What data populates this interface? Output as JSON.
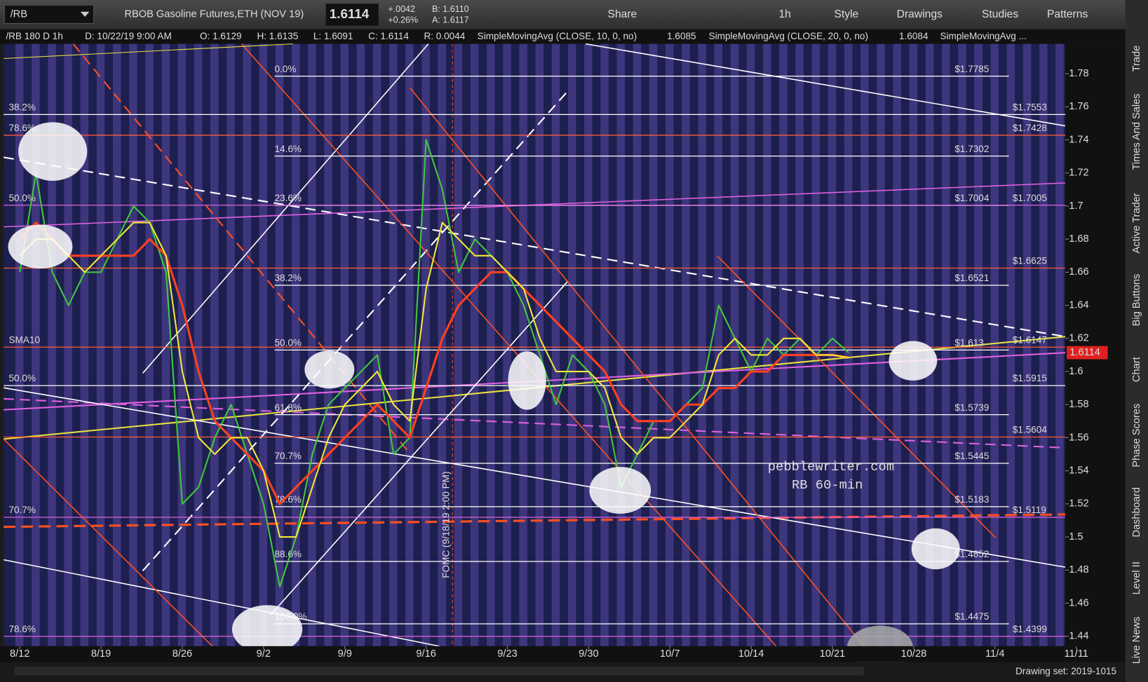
{
  "toolbar": {
    "symbol": "/RB",
    "description": "RBOB Gasoline Futures,ETH (NOV 19)",
    "last": "1.6114",
    "change": "+.0042",
    "change_pct": "+0.26%",
    "bid": "B: 1.6110",
    "ask": "A: 1.6117",
    "buttons": [
      "Share",
      "1h",
      "Style",
      "Drawings",
      "Studies",
      "Patterns"
    ]
  },
  "header": {
    "symbol": "/RB 180 D 1h",
    "date": "D: 10/22/19 9:00 AM",
    "open": "O: 1.6129",
    "high": "H: 1.6135",
    "low": "L: 1.6091",
    "close": "C: 1.6114",
    "range": "R: 0.0044",
    "study1_value": "1.6085",
    "study2_value": "1.6084",
    "study3": "SimpleMovingAvg ..."
  },
  "sidebar": [
    "Trade",
    "Times And Sales",
    "Active Trader",
    "Big Buttons",
    "Chart",
    "Phase Scores",
    "Dashboard",
    "Level II",
    "Live News"
  ],
  "footer": {
    "drawing_set": "Drawing set: 2019-1015"
  },
  "chart_data": {
    "type": "line",
    "categories": [
      "8/12",
      null,
      null,
      null,
      null,
      "8/19",
      null,
      null,
      null,
      null,
      "8/26",
      null,
      null,
      null,
      null,
      "9/2",
      null,
      null,
      null,
      null,
      "9/9",
      null,
      null,
      null,
      null,
      "9/16",
      null,
      null,
      null,
      null,
      "9/23",
      null,
      null,
      null,
      null,
      "9/30",
      null,
      null,
      null,
      null,
      "10/7",
      null,
      null,
      null,
      null,
      "10/14",
      null,
      null,
      null,
      null,
      "10/21",
      null,
      null,
      null,
      null,
      "10/28",
      null,
      null,
      null,
      null,
      "11/4",
      null,
      null,
      null,
      null,
      "11/11"
    ],
    "series": [
      {
        "color": "#3ec83e",
        "values": [
          1.66,
          1.72,
          1.66,
          1.64,
          1.66,
          1.66,
          1.68,
          1.7,
          1.69,
          1.66,
          1.52,
          1.53,
          1.56,
          1.58,
          1.55,
          1.52,
          1.47,
          1.5,
          1.55,
          1.58,
          1.59,
          1.6,
          1.61,
          1.55,
          1.56,
          1.74,
          1.71,
          1.66,
          1.68,
          1.67,
          1.66,
          1.64,
          1.61,
          1.58,
          1.61,
          1.6,
          1.58,
          1.53,
          1.55,
          1.57,
          1.57,
          1.58,
          1.59,
          1.64,
          1.62,
          1.6,
          1.62,
          1.61,
          1.62,
          1.61,
          1.62,
          1.6114,
          null,
          null,
          null,
          null,
          null,
          null,
          null,
          null,
          null,
          null,
          null,
          null,
          null,
          null
        ]
      },
      {
        "name": "SimpleMovingAvg (CLOSE, 10, 0, no)",
        "color": "#ff4020",
        "values": [
          1.68,
          1.69,
          1.68,
          1.67,
          1.67,
          1.67,
          1.67,
          1.67,
          1.68,
          1.67,
          1.64,
          1.6,
          1.57,
          1.56,
          1.55,
          1.54,
          1.52,
          1.53,
          1.54,
          1.55,
          1.56,
          1.57,
          1.58,
          1.57,
          1.56,
          1.59,
          1.62,
          1.64,
          1.65,
          1.66,
          1.66,
          1.65,
          1.64,
          1.63,
          1.62,
          1.61,
          1.6,
          1.58,
          1.57,
          1.57,
          1.57,
          1.58,
          1.58,
          1.59,
          1.59,
          1.6,
          1.6,
          1.61,
          1.61,
          1.61,
          1.61,
          1.6085,
          null,
          null,
          null,
          null,
          null,
          null,
          null,
          null,
          null,
          null,
          null,
          null,
          null,
          null
        ]
      },
      {
        "name": "SimpleMovingAvg (CLOSE, 20, 0, no)",
        "color": "#f0e838",
        "values": [
          1.67,
          1.68,
          1.68,
          1.67,
          1.66,
          1.67,
          1.68,
          1.69,
          1.69,
          1.67,
          1.6,
          1.56,
          1.55,
          1.56,
          1.56,
          1.54,
          1.5,
          1.5,
          1.53,
          1.56,
          1.58,
          1.59,
          1.6,
          1.58,
          1.57,
          1.65,
          1.69,
          1.68,
          1.67,
          1.67,
          1.66,
          1.65,
          1.62,
          1.6,
          1.6,
          1.6,
          1.59,
          1.56,
          1.55,
          1.56,
          1.56,
          1.57,
          1.58,
          1.61,
          1.62,
          1.61,
          1.61,
          1.62,
          1.62,
          1.61,
          1.61,
          1.6084,
          null,
          null,
          null,
          null,
          null,
          null,
          null,
          null,
          null,
          null,
          null,
          null,
          null,
          null
        ]
      }
    ],
    "ylim": [
      1.434,
      1.798
    ],
    "yticks": [
      1.44,
      1.46,
      1.48,
      1.5,
      1.52,
      1.54,
      1.56,
      1.58,
      1.6,
      1.62,
      1.64,
      1.66,
      1.68,
      1.7,
      1.72,
      1.74,
      1.76,
      1.78
    ],
    "current_price": 1.6114,
    "retracement_levels": [
      {
        "left": "0.0%",
        "right": "$1.7785",
        "value": 1.7785
      },
      {
        "left": "14.6%",
        "right": "$1.7302",
        "value": 1.7302
      },
      {
        "left": "23.6%",
        "right": "$1.7004",
        "value": 1.7004
      },
      {
        "left": "38.2%",
        "right": "$1.6521",
        "value": 1.6521
      },
      {
        "left": "50.0%",
        "right": "$1.613",
        "value": 1.613
      },
      {
        "left": "61.8%",
        "right": "$1.5739",
        "value": 1.5739
      },
      {
        "left": "70.7%",
        "right": "$1.5445",
        "value": 1.5445
      },
      {
        "left": "78.6%",
        "right": "$1.5183",
        "value": 1.5183
      },
      {
        "left": "88.6%",
        "right": "$1.4852",
        "value": 1.4852
      },
      {
        "left": "100.0%",
        "right": "$1.4475",
        "value": 1.4475
      }
    ],
    "levels": [
      {
        "left": "38.2%",
        "right": "$1.7553",
        "value": 1.7553,
        "color": "#ffffff"
      },
      {
        "left": "78.6%",
        "right": "$1.7428",
        "value": 1.7428,
        "color": "#ff5a36"
      },
      {
        "left": "50.0%",
        "right": "$1.7005",
        "value": 1.7005,
        "color": "#e060e0"
      },
      {
        "right": "$1.6625",
        "value": 1.6625,
        "color": "#ff5a36"
      },
      {
        "left": "SMA10",
        "right": "$1.6147",
        "value": 1.6147,
        "color": "#ff5a36"
      },
      {
        "left": "50.0%",
        "right": "$1.5915",
        "value": 1.5915,
        "color": "#ffffff"
      },
      {
        "right": "$1.5604",
        "value": 1.5604,
        "color": "#ff5a36"
      },
      {
        "left": "70.7%",
        "right": "$1.5119",
        "value": 1.5119,
        "color": "#e060e0"
      },
      {
        "left": "78.6%",
        "right": "$1.4399",
        "value": 1.4399,
        "color": "#e060e0"
      }
    ],
    "watermark": [
      "pebblewriter.com",
      "RB 60-min"
    ],
    "event_label": "FOMC (9/18/19 2:00 PM)"
  }
}
